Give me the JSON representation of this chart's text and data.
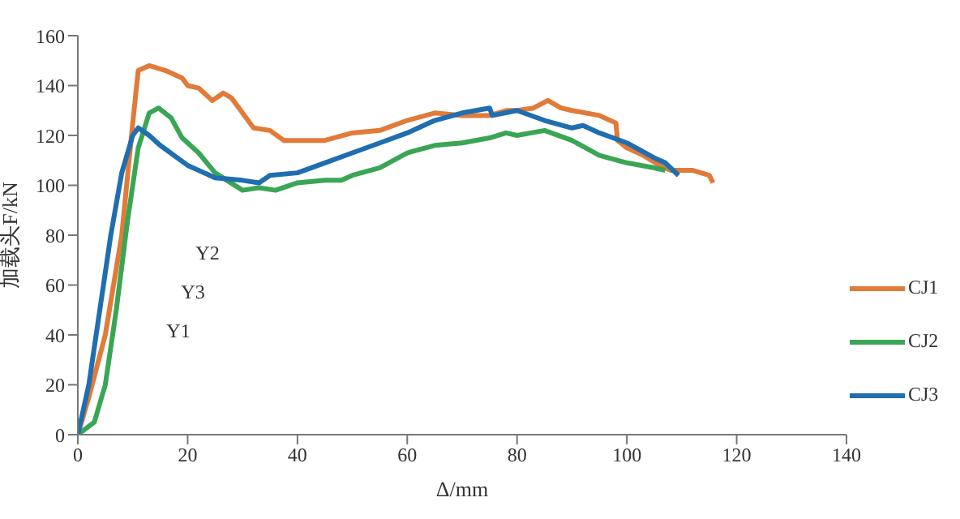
{
  "chart_data": {
    "type": "line",
    "xlabel": "Δ/mm",
    "ylabel": "加载头F/kN",
    "xlim": [
      0,
      140
    ],
    "xticks": [
      0,
      20,
      40,
      60,
      80,
      100,
      120,
      140
    ],
    "ylim": [
      0,
      160
    ],
    "yticks": [
      0,
      20,
      40,
      60,
      80,
      100,
      120,
      140,
      160
    ],
    "legend": "right",
    "marker": "none",
    "line_style": "solid",
    "annotations": [
      "Y2",
      "Y3",
      "Y1"
    ],
    "series": [
      {
        "name": "CJ1",
        "color": "#e07b39",
        "x": [
          0,
          2,
          5,
          8,
          10,
          11,
          13,
          16,
          19,
          20,
          22,
          24.5,
          26.5,
          28,
          30,
          32,
          35,
          37.5,
          40,
          45,
          50,
          55,
          60,
          65,
          70,
          75,
          78,
          80,
          83,
          85.6,
          88,
          90,
          95,
          98,
          98.3,
          100,
          103,
          106,
          108,
          112,
          115,
          115.7
        ],
        "values": [
          0,
          15,
          40,
          80,
          125,
          146,
          148,
          146,
          143,
          140,
          139,
          134,
          137,
          135,
          129,
          123,
          122,
          118,
          118,
          118,
          121,
          122,
          126,
          129,
          128,
          128,
          130,
          130,
          131,
          134,
          131,
          130,
          128,
          125,
          118,
          115,
          112,
          108,
          106,
          106,
          104,
          101
        ]
      },
      {
        "name": "CJ2",
        "color": "#3aa655",
        "x": [
          0,
          3,
          5,
          7,
          9,
          11,
          13,
          14.7,
          17,
          19,
          22,
          25,
          30,
          33,
          36,
          40,
          45,
          48,
          50,
          55,
          60,
          65,
          70,
          75,
          78,
          80,
          85,
          90,
          95,
          100,
          105,
          107
        ],
        "values": [
          0,
          5,
          20,
          50,
          85,
          115,
          129,
          131,
          127,
          119,
          113,
          105,
          98,
          99,
          98,
          101,
          102,
          102,
          104,
          107,
          113,
          116,
          117,
          119,
          121,
          120,
          122,
          118,
          112,
          109,
          107,
          106
        ]
      },
      {
        "name": "CJ3",
        "color": "#1f6eb0",
        "x": [
          0,
          2,
          4,
          6,
          8,
          10,
          11,
          13,
          15,
          20,
          25,
          30,
          33,
          35,
          40,
          45,
          50,
          55,
          60,
          65,
          70,
          75,
          75.5,
          80,
          85,
          90,
          92,
          95,
          100,
          105,
          107,
          109.4
        ],
        "values": [
          0,
          20,
          50,
          80,
          105,
          120,
          123,
          120,
          116,
          108,
          103,
          102,
          101,
          104,
          105,
          109,
          113,
          117,
          121,
          126,
          129,
          131,
          128,
          130,
          126,
          123,
          124,
          121,
          117,
          111,
          109,
          104
        ]
      }
    ]
  }
}
